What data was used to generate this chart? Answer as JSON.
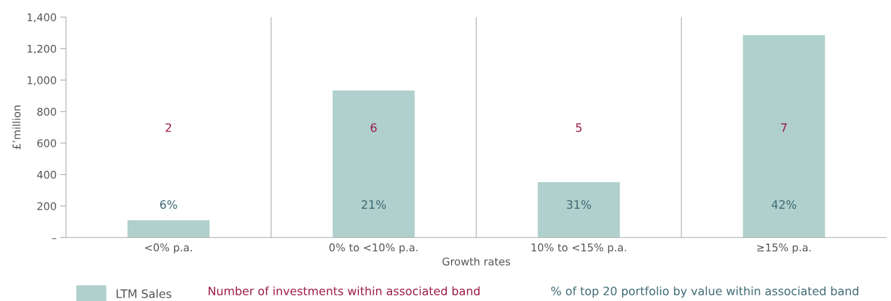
{
  "chart_data": {
    "type": "bar",
    "categories": [
      "<0% p.a.",
      "0% to <10% p.a.",
      "10% to <15% p.a.",
      "≥15% p.a."
    ],
    "series": [
      {
        "name": "LTM Sales",
        "color": "#afd0cc",
        "values": [
          110,
          934,
          352,
          1286
        ]
      }
    ],
    "xlabel": "Growth rates",
    "ylabel": "£’million",
    "ylim": [
      0,
      1400
    ],
    "yticks": [
      {
        "value": 0,
        "label": "–"
      },
      200,
      400,
      600,
      800,
      {
        "value": 1000,
        "label": "1,000"
      },
      {
        "value": 1200,
        "label": "1,200"
      },
      {
        "value": 1400,
        "label": "1,400"
      }
    ],
    "grid": "x",
    "legend": "bottom left",
    "annotations": [
      "2",
      "6",
      "5",
      "7",
      "6%",
      "21%",
      "31%",
      "42%",
      "Number of investments within associated band",
      "% of top 20 portfolio by value within associated band"
    ]
  }
}
